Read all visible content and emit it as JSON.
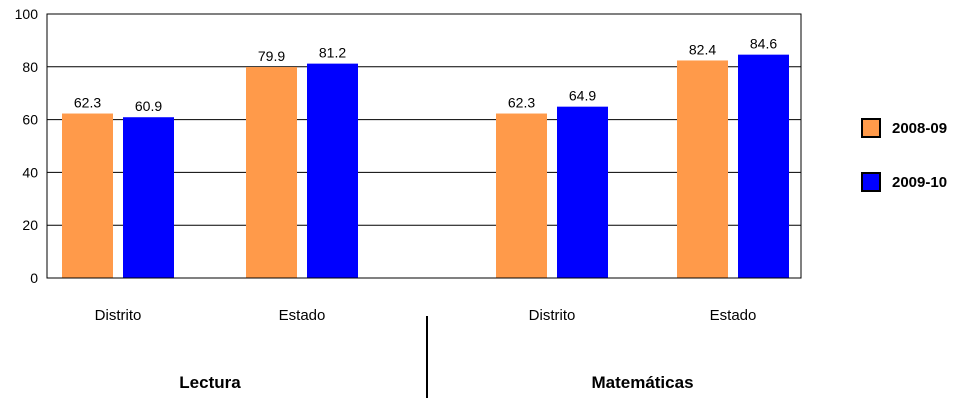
{
  "chart_data": {
    "type": "bar",
    "categories": [
      "Distrito",
      "Estado",
      "Distrito",
      "Estado"
    ],
    "groups": [
      {
        "label": "Lectura",
        "category_indices": [
          0,
          1
        ]
      },
      {
        "label": "Matemáticas",
        "category_indices": [
          2,
          3
        ]
      }
    ],
    "series": [
      {
        "name": "2008-09",
        "color": "#FF9A4A",
        "values": [
          62.3,
          79.9,
          62.3,
          82.4
        ]
      },
      {
        "name": "2009-10",
        "color": "#0000FF",
        "values": [
          60.9,
          81.2,
          64.9,
          84.6
        ]
      }
    ],
    "ylim": [
      0,
      100
    ],
    "yticks": [
      0,
      20,
      40,
      60,
      80,
      100
    ],
    "grid": true,
    "legend_position": "right"
  }
}
